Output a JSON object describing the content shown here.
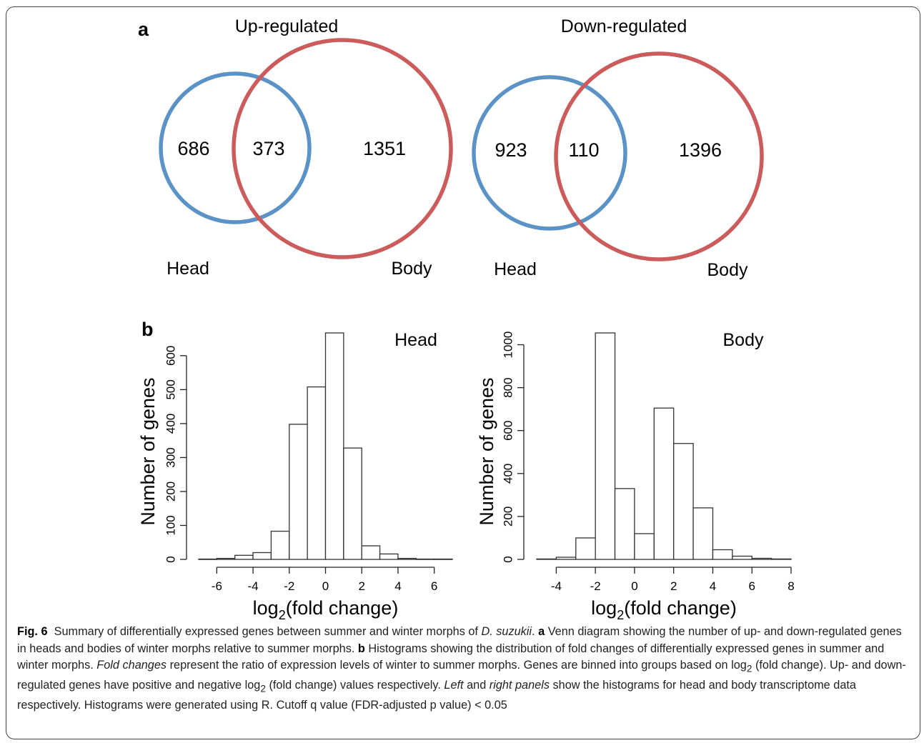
{
  "panel_a": {
    "label": "a",
    "venn": [
      {
        "title": "Up-regulated",
        "left_set": "Head",
        "right_set": "Body",
        "only_left": "686",
        "overlap": "373",
        "only_right": "1351"
      },
      {
        "title": "Down-regulated",
        "left_set": "Head",
        "right_set": "Body",
        "only_left": "923",
        "overlap": "110",
        "only_right": "1396"
      }
    ],
    "colors": {
      "head": "#5b93c7",
      "body": "#cc5c5c"
    }
  },
  "panel_b": {
    "label": "b"
  },
  "chart_data": [
    {
      "type": "bar",
      "title": "Head",
      "xlabel": "log2(fold change)",
      "xlabel_main": "log",
      "xlabel_sub": "2",
      "xlabel_rest": "(fold change)",
      "ylabel": "Number of genes",
      "bin_edges": [
        -7,
        -6,
        -5,
        -4,
        -3,
        -2,
        -1,
        0,
        1,
        2,
        3,
        4,
        5,
        6,
        7
      ],
      "values": [
        1,
        3,
        12,
        20,
        83,
        398,
        508,
        667,
        328,
        40,
        16,
        3,
        1,
        1
      ],
      "xlim": [
        -7,
        7
      ],
      "ylim": [
        0,
        667
      ],
      "xticks": [
        -6,
        -4,
        -2,
        0,
        2,
        4,
        6
      ],
      "yticks": [
        0,
        100,
        200,
        300,
        400,
        500,
        600
      ]
    },
    {
      "type": "bar",
      "title": "Body",
      "xlabel": "log2(fold change)",
      "xlabel_main": "log",
      "xlabel_sub": "2",
      "xlabel_rest": "(fold change)",
      "ylabel": "Number of genes",
      "bin_edges": [
        -5,
        -4,
        -3,
        -2,
        -1,
        0,
        1,
        2,
        3,
        4,
        5,
        6,
        7,
        8
      ],
      "values": [
        2,
        10,
        100,
        1055,
        330,
        120,
        705,
        540,
        240,
        45,
        15,
        5,
        2
      ],
      "xlim": [
        -5,
        8
      ],
      "ylim": [
        0,
        1055
      ],
      "xticks": [
        -4,
        -2,
        0,
        2,
        4,
        6,
        8
      ],
      "yticks": [
        0,
        200,
        400,
        600,
        800,
        1000
      ]
    }
  ],
  "caption": {
    "fig_label": "Fig. 6",
    "line1_pre": "Summary of differentially expressed genes between summer and winter morphs of ",
    "species": "D. suzukii",
    "line1_post": ". ",
    "a_label": "a",
    "a_text": " Venn diagram showing the number of up- and down-regulated genes in heads and bodies of winter morphs relative to summer morphs. ",
    "b_label": "b",
    "b_text1": " Histograms showing the distribution of fold changes of differentially expressed genes in summer and winter morphs. ",
    "fold_changes": "Fold changes",
    "b_text2": " represent the ratio of expression levels of winter to summer morphs. Genes are binned into groups based on log",
    "sub1": "2",
    "b_text3": " (fold change). Up- and down-regulated genes have positive and negative log",
    "sub2": "2",
    "b_text4": " (fold change) values respectively. ",
    "left": "Left",
    "and": " and ",
    "right_panels": "right panels",
    "b_text5": " show the histograms for head and body transcriptome data respectively. Histograms were generated using R. Cutoff q value (FDR-adjusted p value) < 0.05"
  }
}
